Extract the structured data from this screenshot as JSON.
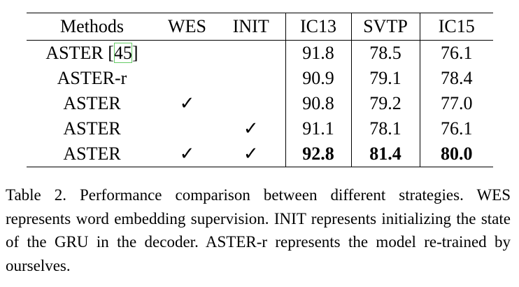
{
  "table": {
    "header": [
      "Methods",
      "WES",
      "INIT",
      "IC13",
      "SVTP",
      "IC15"
    ],
    "rows": [
      [
        [
          "ASTER [",
          "45",
          "]"
        ],
        "",
        "",
        "91.8",
        "78.5",
        "76.1"
      ],
      [
        "ASTER-r",
        "",
        "",
        "90.9",
        "79.1",
        "78.4"
      ],
      [
        "ASTER",
        "✓",
        "",
        "90.8",
        "79.2",
        "77.0"
      ],
      [
        "ASTER",
        "",
        "✓",
        "91.1",
        "78.1",
        "76.1"
      ],
      [
        "ASTER",
        "✓",
        "✓",
        "92.8",
        "81.4",
        "80.0"
      ]
    ]
  },
  "caption": "Table 2. Performance comparison between different strategies. WES represents word embedding supervision. INIT represents initializing the state of the GRU in the decoder. ASTER-r represents the model re-trained by ourselves."
}
